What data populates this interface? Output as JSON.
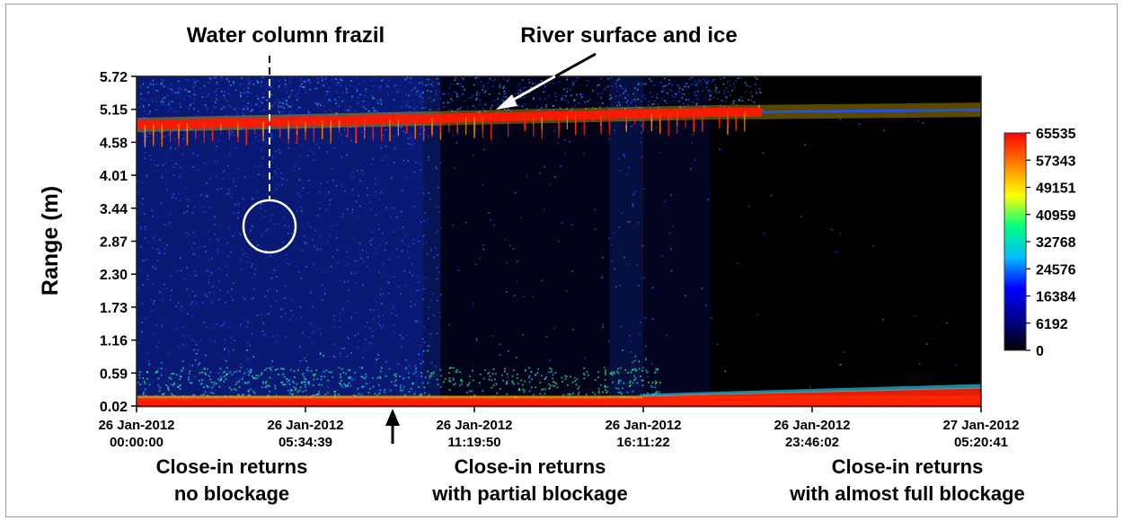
{
  "chart_data": {
    "type": "heatmap",
    "title": "",
    "ylabel": "Range (m)",
    "xlabel": "",
    "ylim": [
      0.02,
      5.72
    ],
    "y_ticks": [
      "5.72",
      "5.15",
      "4.58",
      "4.01",
      "3.44",
      "2.87",
      "2.30",
      "1.73",
      "1.16",
      "0.59",
      "0.02"
    ],
    "x_ticks": [
      {
        "date": "26 Jan-2012",
        "time": "00:00:00"
      },
      {
        "date": "26 Jan-2012",
        "time": "05:34:39"
      },
      {
        "date": "26 Jan-2012",
        "time": "11:19:50"
      },
      {
        "date": "26 Jan-2012",
        "time": "16:11:22"
      },
      {
        "date": "26 Jan-2012",
        "time": "23:46:02"
      },
      {
        "date": "27 Jan-2012",
        "time": "05:20:41"
      }
    ],
    "colorbar": {
      "ticks": [
        "65535",
        "57343",
        "49151",
        "40959",
        "32768",
        "24576",
        "16384",
        "6192",
        "0"
      ],
      "range": [
        0,
        65535
      ],
      "colormap": [
        "#000000",
        "#00008f",
        "#0000ff",
        "#00bfff",
        "#00ff80",
        "#ffff00",
        "#ff8000",
        "#ff0000"
      ]
    },
    "annotations": {
      "frazil": "Water column frazil",
      "surface": "River surface and ice"
    },
    "region_labels": [
      {
        "line1": "Close-in returns",
        "line2": "no blockage"
      },
      {
        "line1": "Close-in returns",
        "line2": "with partial blockage"
      },
      {
        "line1": "Close-in returns",
        "line2": "with almost full blockage"
      }
    ]
  }
}
